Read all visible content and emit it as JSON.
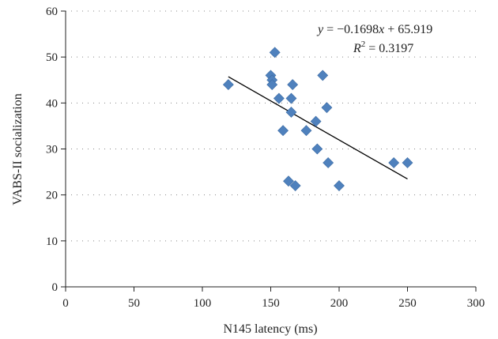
{
  "chart_data": {
    "type": "scatter",
    "xlabel": "N145 latency (ms)",
    "ylabel": "VABS-II socialization",
    "xlim": [
      0,
      300
    ],
    "ylim": [
      0,
      60
    ],
    "x_ticks": [
      0,
      50,
      100,
      150,
      200,
      250,
      300
    ],
    "y_ticks": [
      0,
      10,
      20,
      30,
      40,
      50,
      60
    ],
    "grid": "horizontal dotted",
    "marker": "diamond",
    "colors": {
      "points": "#4f81bd",
      "trendline": "#000000",
      "grid": "#888888"
    },
    "points": [
      {
        "x": 119,
        "y": 44
      },
      {
        "x": 150,
        "y": 46
      },
      {
        "x": 151,
        "y": 45
      },
      {
        "x": 151,
        "y": 44
      },
      {
        "x": 153,
        "y": 51
      },
      {
        "x": 156,
        "y": 41
      },
      {
        "x": 159,
        "y": 34
      },
      {
        "x": 163,
        "y": 23
      },
      {
        "x": 165,
        "y": 41
      },
      {
        "x": 165,
        "y": 38
      },
      {
        "x": 166,
        "y": 44
      },
      {
        "x": 168,
        "y": 22
      },
      {
        "x": 176,
        "y": 34
      },
      {
        "x": 183,
        "y": 36
      },
      {
        "x": 184,
        "y": 30
      },
      {
        "x": 188,
        "y": 46
      },
      {
        "x": 191,
        "y": 39
      },
      {
        "x": 192,
        "y": 27
      },
      {
        "x": 200,
        "y": 22
      },
      {
        "x": 240,
        "y": 27
      },
      {
        "x": 250,
        "y": 27
      }
    ],
    "trendline": {
      "slope": -0.1698,
      "intercept": 65.919,
      "x_range": [
        119,
        250
      ],
      "equation_parts": {
        "y": "y",
        "eq": " = −0.1698",
        "x": "x",
        "rest": " + 65.919",
        "r": "R",
        "sup": "2",
        "r_rest": " = 0.3197"
      }
    }
  }
}
